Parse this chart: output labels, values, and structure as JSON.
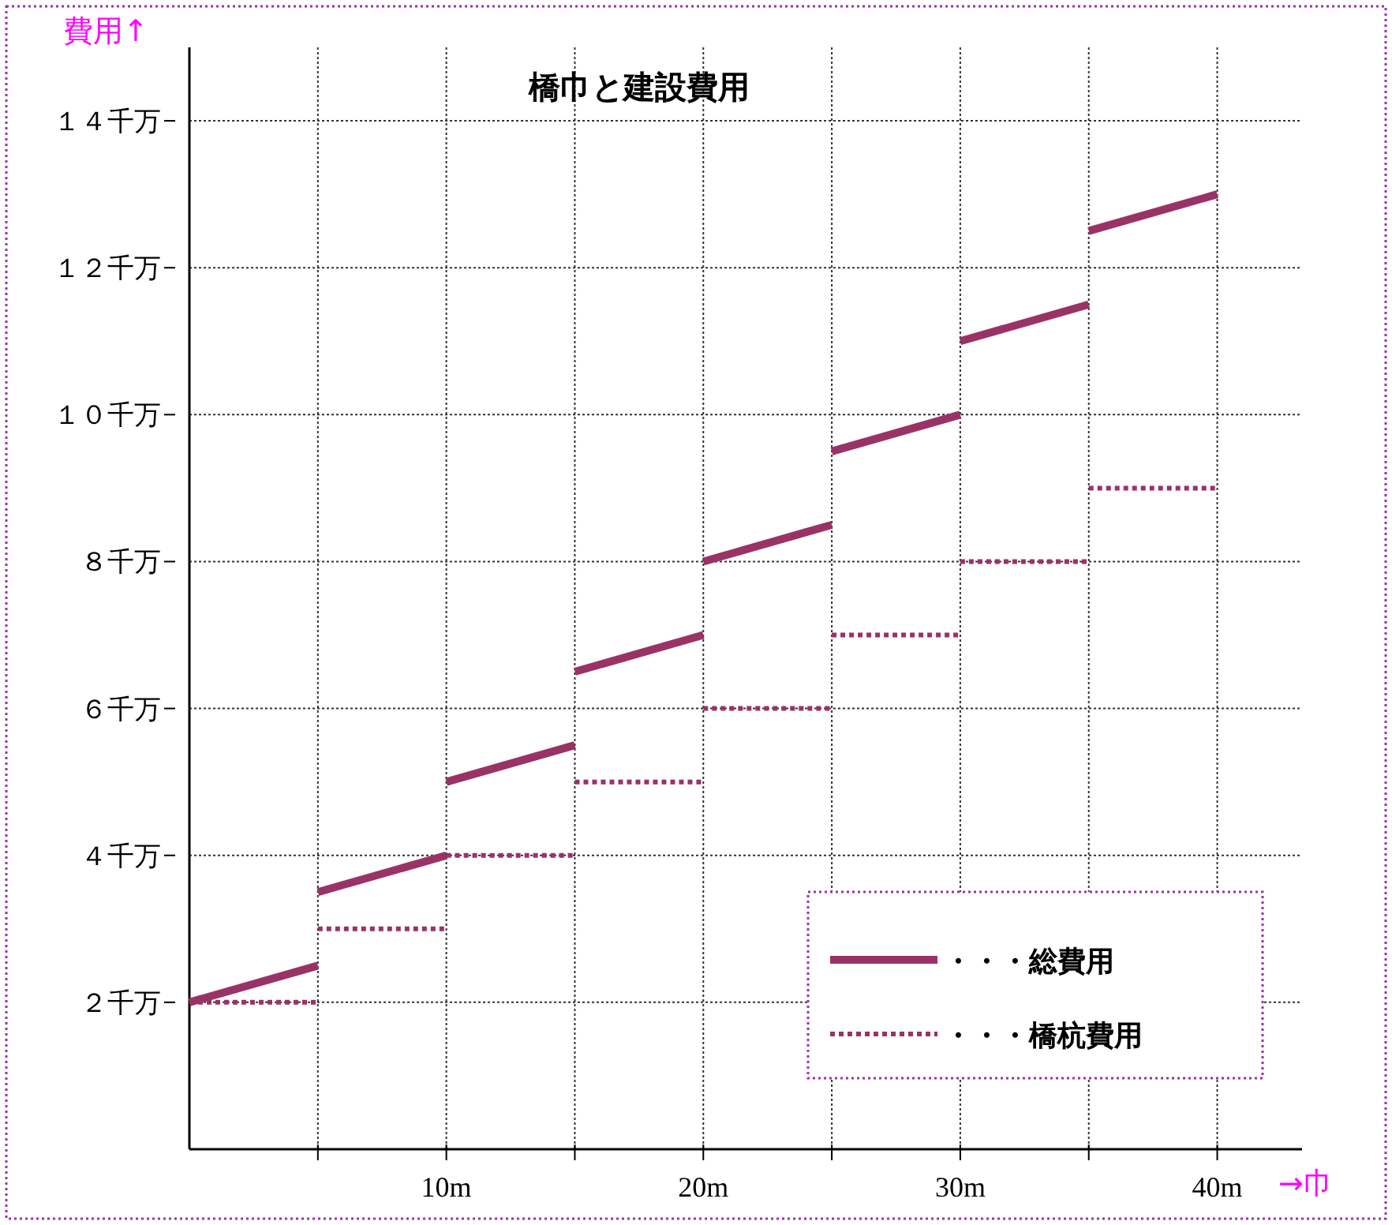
{
  "chart_data": {
    "type": "line",
    "title": "橋巾と建設費用",
    "xlabel": "→巾",
    "ylabel": "費用↑",
    "xlim": [
      0,
      43.3
    ],
    "ylim": [
      0,
      15
    ],
    "xticks": [
      {
        "value": 5,
        "label": null
      },
      {
        "value": 10,
        "label": "10m"
      },
      {
        "value": 15,
        "label": null
      },
      {
        "value": 20,
        "label": "20m"
      },
      {
        "value": 25,
        "label": null
      },
      {
        "value": 30,
        "label": "30m"
      },
      {
        "value": 35,
        "label": null
      },
      {
        "value": 40,
        "label": "40m"
      }
    ],
    "yticks": [
      {
        "value": 2,
        "label": "２千万"
      },
      {
        "value": 4,
        "label": "４千万"
      },
      {
        "value": 6,
        "label": "６千万"
      },
      {
        "value": 8,
        "label": "８千万"
      },
      {
        "value": 10,
        "label": "１０千万"
      },
      {
        "value": 12,
        "label": "１２千万"
      },
      {
        "value": 14,
        "label": "１４千万"
      }
    ],
    "grid": true,
    "legend": "bottom right",
    "marker": "none",
    "series": [
      {
        "name": "・・・総費用",
        "color": "#993366",
        "line_style": "solid",
        "x": [
          0,
          5
        ],
        "values": [
          2,
          2.5
        ]
      },
      {
        "color": "#993366",
        "line_style": "solid",
        "x": [
          5,
          10
        ],
        "values": [
          3.5,
          4
        ]
      },
      {
        "color": "#993366",
        "line_style": "solid",
        "x": [
          10,
          15
        ],
        "values": [
          5,
          5.5
        ]
      },
      {
        "color": "#993366",
        "line_style": "solid",
        "x": [
          15,
          20
        ],
        "values": [
          6.5,
          7
        ]
      },
      {
        "color": "#993366",
        "line_style": "solid",
        "x": [
          20,
          25
        ],
        "values": [
          8,
          8.5
        ]
      },
      {
        "color": "#993366",
        "line_style": "solid",
        "x": [
          25,
          30
        ],
        "values": [
          9.5,
          10
        ]
      },
      {
        "color": "#993366",
        "line_style": "solid",
        "x": [
          30,
          35
        ],
        "values": [
          11,
          11.5
        ]
      },
      {
        "color": "#993366",
        "line_style": "solid",
        "x": [
          35,
          40
        ],
        "values": [
          12.5,
          13
        ]
      },
      {
        "name": "・・・橋杭費用",
        "color": "#993366",
        "line_style": "dotted",
        "x": [
          0,
          5
        ],
        "values": [
          2,
          2
        ]
      },
      {
        "color": "#993366",
        "line_style": "dotted",
        "x": [
          5,
          10
        ],
        "values": [
          3,
          3
        ]
      },
      {
        "color": "#993366",
        "line_style": "dotted",
        "x": [
          10,
          15
        ],
        "values": [
          4,
          4
        ]
      },
      {
        "color": "#993366",
        "line_style": "dotted",
        "x": [
          15,
          20
        ],
        "values": [
          5,
          5
        ]
      },
      {
        "color": "#993366",
        "line_style": "dotted",
        "x": [
          20,
          25
        ],
        "values": [
          6,
          6
        ]
      },
      {
        "color": "#993366",
        "line_style": "dotted",
        "x": [
          25,
          30
        ],
        "values": [
          7,
          7
        ]
      },
      {
        "color": "#993366",
        "line_style": "dotted",
        "x": [
          30,
          35
        ],
        "values": [
          8,
          8
        ]
      },
      {
        "color": "#993366",
        "line_style": "dotted",
        "x": [
          35,
          40
        ],
        "values": [
          9,
          9
        ]
      }
    ]
  }
}
